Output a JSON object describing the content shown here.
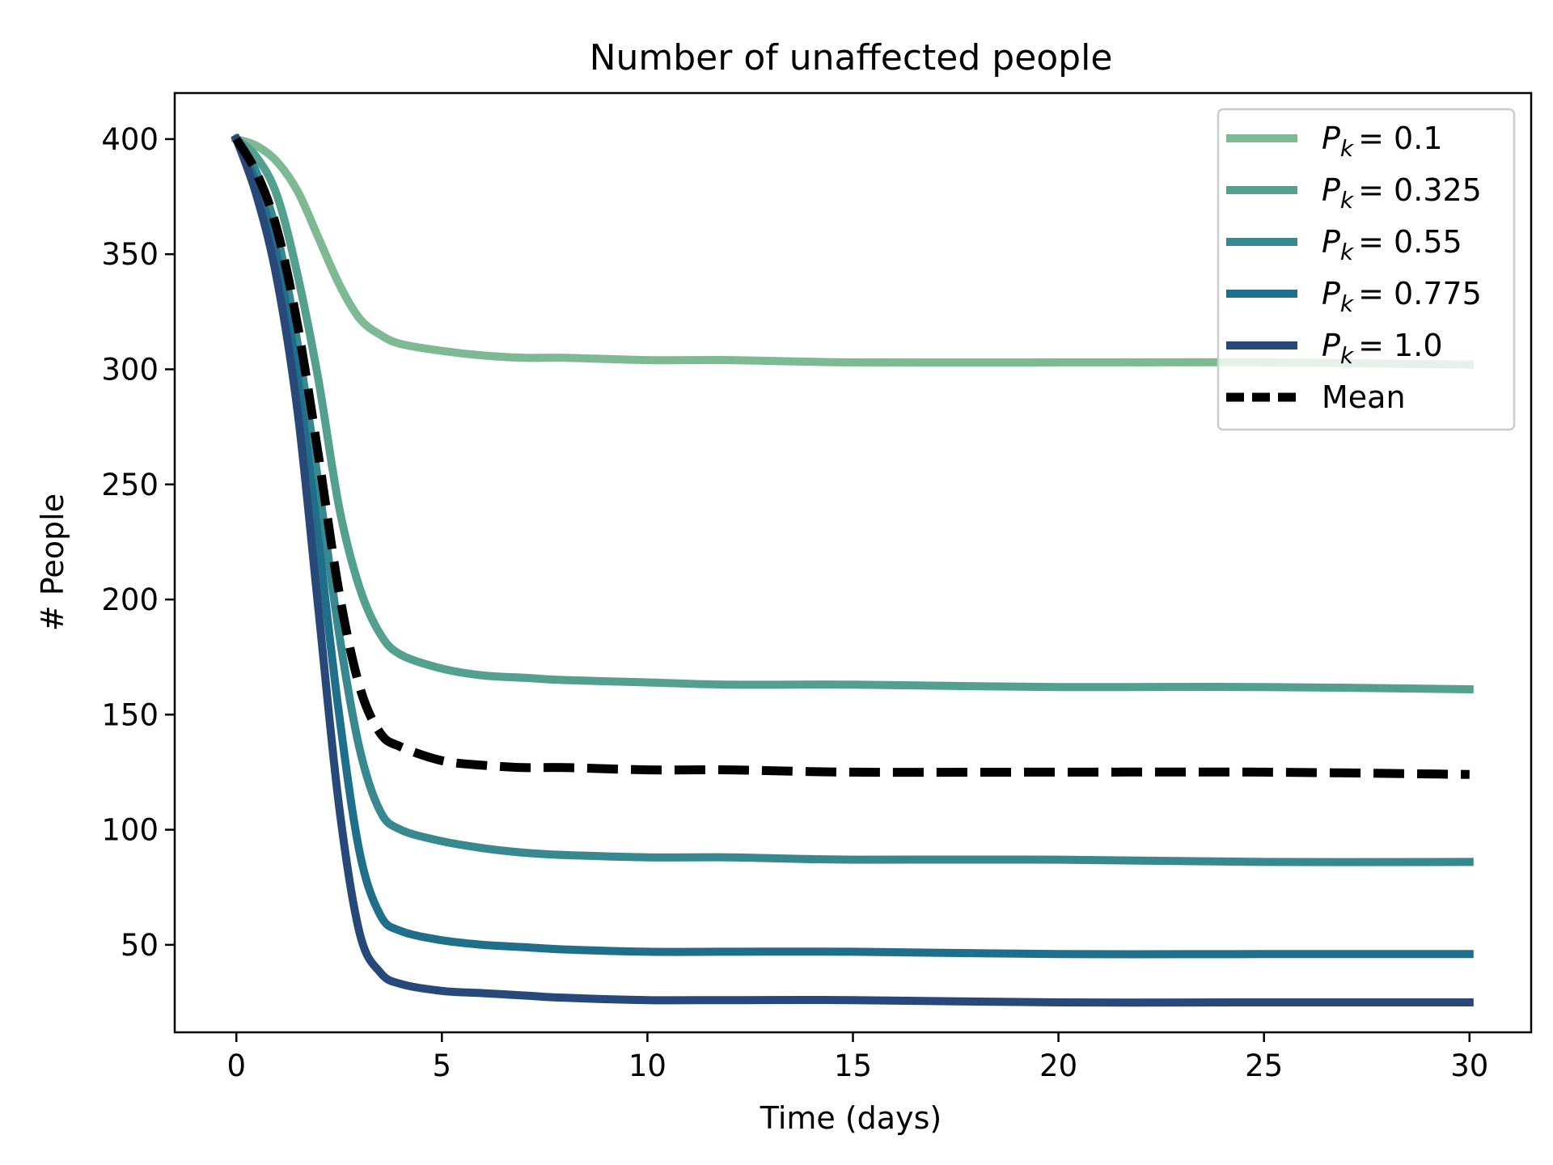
{
  "chart_data": {
    "type": "line",
    "title": "Number of unaffected people",
    "xlabel": "Time (days)",
    "ylabel": "# People",
    "xlim": [
      -1.5,
      31.5
    ],
    "ylim": [
      12,
      420
    ],
    "xticks": [
      0,
      5,
      10,
      15,
      20,
      25,
      30
    ],
    "yticks": [
      50,
      100,
      150,
      200,
      250,
      300,
      350,
      400
    ],
    "grid": false,
    "legend_position": "top-right",
    "x": [
      0,
      0.5,
      1,
      1.5,
      2,
      2.5,
      3,
      3.5,
      4,
      5,
      6,
      7,
      8,
      10,
      12,
      15,
      20,
      25,
      30
    ],
    "series": [
      {
        "name": "P_k = 0.1",
        "legend_symbol": "P",
        "legend_sub": "k",
        "legend_value": "= 0.1",
        "color": "#7db992",
        "dashed": false,
        "values": [
          400,
          397,
          390,
          377,
          357,
          337,
          322,
          315,
          311,
          308,
          306,
          305,
          305,
          304,
          304,
          303,
          303,
          303,
          302
        ]
      },
      {
        "name": "P_k = 0.325",
        "legend_symbol": "P",
        "legend_sub": "k",
        "legend_value": "= 0.325",
        "color": "#54a08f",
        "dashed": false,
        "values": [
          400,
          392,
          375,
          340,
          295,
          240,
          205,
          185,
          176,
          170,
          167,
          166,
          165,
          164,
          163,
          163,
          162,
          162,
          161
        ]
      },
      {
        "name": "P_k = 0.55",
        "legend_symbol": "P",
        "legend_sub": "k",
        "legend_value": "= 0.55",
        "color": "#38888f",
        "dashed": false,
        "values": [
          400,
          385,
          358,
          310,
          250,
          185,
          135,
          108,
          100,
          95,
          92,
          90,
          89,
          88,
          88,
          87,
          87,
          86,
          86
        ]
      },
      {
        "name": "P_k = 0.775",
        "legend_symbol": "P",
        "legend_sub": "k",
        "legend_value": "= 0.775",
        "color": "#1f6f8b",
        "dashed": false,
        "values": [
          400,
          380,
          348,
          295,
          225,
          150,
          90,
          63,
          56,
          52,
          50,
          49,
          48,
          47,
          47,
          47,
          46,
          46,
          46
        ]
      },
      {
        "name": "P_k = 1.0",
        "legend_symbol": "P",
        "legend_sub": "k",
        "legend_value": "= 1.0",
        "color": "#26497a",
        "dashed": false,
        "values": [
          400,
          375,
          338,
          280,
          195,
          110,
          55,
          38,
          33,
          30,
          29,
          28,
          27,
          26,
          26,
          26,
          25,
          25,
          25
        ]
      },
      {
        "name": "Mean",
        "legend_symbol": "Mean",
        "legend_sub": "",
        "legend_value": "",
        "color": "#000000",
        "dashed": true,
        "values": [
          400,
          385,
          360,
          318,
          262,
          203,
          162,
          142,
          136,
          130,
          128,
          127,
          127,
          126,
          126,
          125,
          125,
          125,
          124
        ]
      }
    ]
  }
}
